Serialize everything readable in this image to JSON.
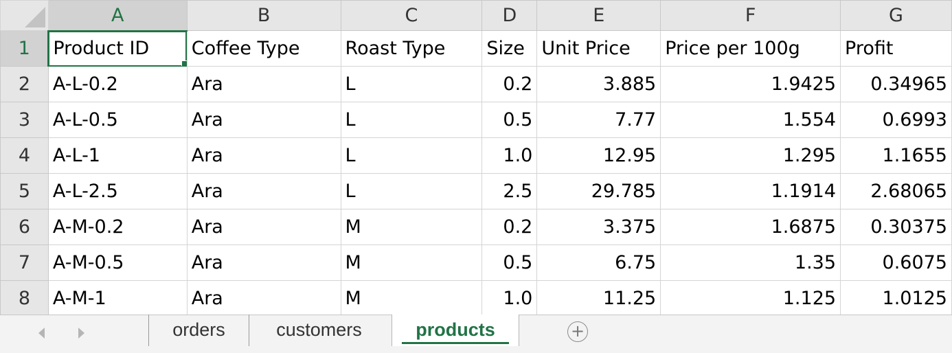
{
  "sheet": {
    "columns": [
      "A",
      "B",
      "C",
      "D",
      "E",
      "F",
      "G"
    ],
    "rows": [
      {
        "n": "1",
        "cells": [
          "Product ID",
          "Coffee Type",
          "Roast Type",
          "Size",
          "Unit Price",
          "Price per 100g",
          "Profit"
        ]
      },
      {
        "n": "2",
        "cells": [
          "A-L-0.2",
          "Ara",
          "L",
          "0.2",
          "3.885",
          "1.9425",
          "0.34965"
        ]
      },
      {
        "n": "3",
        "cells": [
          "A-L-0.5",
          "Ara",
          "L",
          "0.5",
          "7.77",
          "1.554",
          "0.6993"
        ]
      },
      {
        "n": "4",
        "cells": [
          "A-L-1",
          "Ara",
          "L",
          "1.0",
          "12.95",
          "1.295",
          "1.1655"
        ]
      },
      {
        "n": "5",
        "cells": [
          "A-L-2.5",
          "Ara",
          "L",
          "2.5",
          "29.785",
          "1.1914",
          "2.68065"
        ]
      },
      {
        "n": "6",
        "cells": [
          "A-M-0.2",
          "Ara",
          "M",
          "0.2",
          "3.375",
          "1.6875",
          "0.30375"
        ]
      },
      {
        "n": "7",
        "cells": [
          "A-M-0.5",
          "Ara",
          "M",
          "0.5",
          "6.75",
          "1.35",
          "0.6075"
        ]
      },
      {
        "n": "8",
        "cells": [
          "A-M-1",
          "Ara",
          "M",
          "1.0",
          "11.25",
          "1.125",
          "1.0125"
        ]
      }
    ]
  },
  "tabs": {
    "orders": "orders",
    "customers": "customers",
    "products": "products",
    "add": "+"
  },
  "colors": {
    "accent": "#217346",
    "header_bg": "#e6e6e6"
  }
}
